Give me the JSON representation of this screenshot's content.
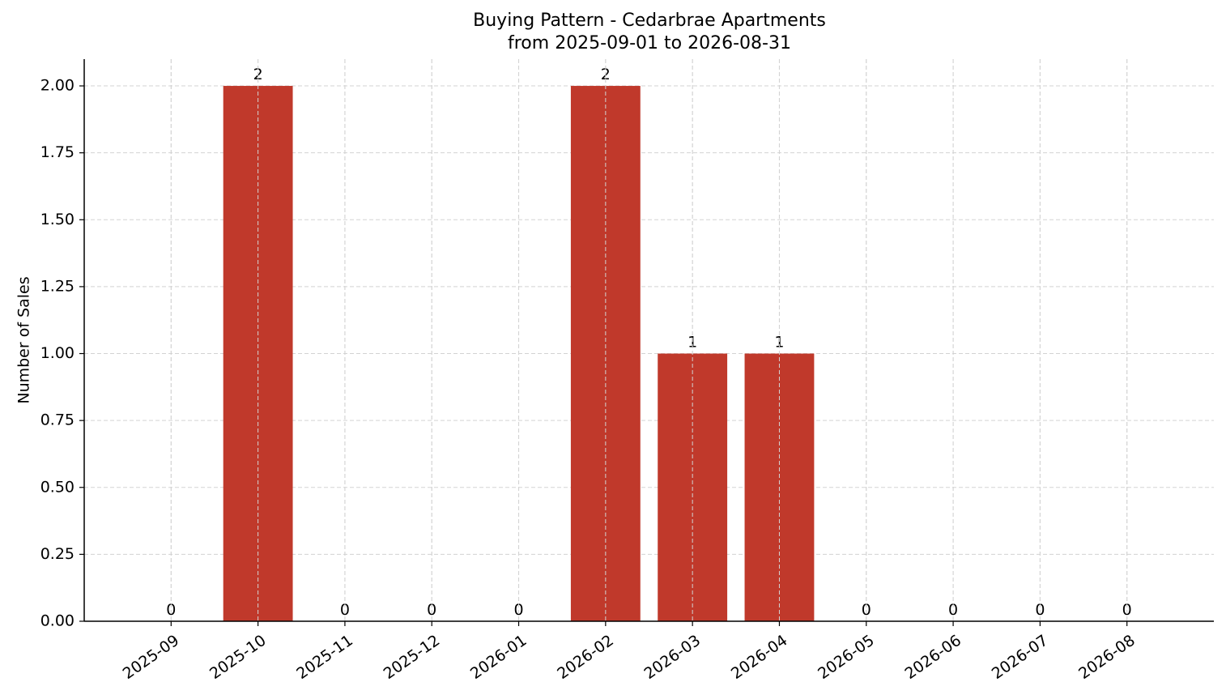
{
  "chart_data": {
    "type": "bar",
    "title": "Buying Pattern - Cedarbrae Apartments",
    "subtitle": "from 2025-09-01 to 2026-08-31",
    "y_label": "Number of Sales",
    "categories": [
      "2025-09",
      "2025-10",
      "2025-11",
      "2025-12",
      "2026-01",
      "2026-02",
      "2026-03",
      "2026-04",
      "2026-05",
      "2026-06",
      "2026-07",
      "2026-08"
    ],
    "values": [
      0,
      2,
      0,
      0,
      0,
      2,
      1,
      1,
      0,
      0,
      0,
      0
    ],
    "color": "#c0392b",
    "ylim": [
      0,
      2.1
    ],
    "yticks": [
      {
        "value": 0,
        "label": "0.00"
      },
      {
        "value": 0.25,
        "label": "0.25"
      },
      {
        "value": 0.5,
        "label": "0.50"
      },
      {
        "value": 0.75,
        "label": "0.75"
      },
      {
        "value": 1,
        "label": "1.00"
      },
      {
        "value": 1.25,
        "label": "1.25"
      },
      {
        "value": 1.5,
        "label": "1.50"
      },
      {
        "value": 1.75,
        "label": "1.75"
      },
      {
        "value": 2,
        "label": "2.00"
      }
    ],
    "grid": true
  }
}
